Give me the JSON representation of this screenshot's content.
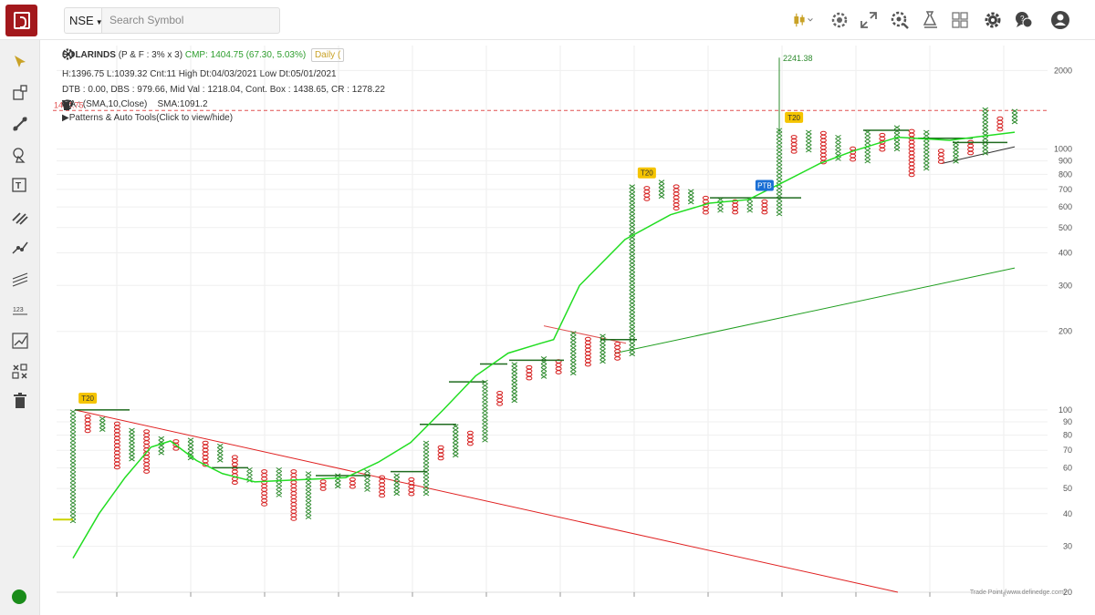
{
  "header": {
    "exchange": "NSE",
    "search_placeholder": "Search Symbol"
  },
  "toolbar_icons": [
    "candlestick-chart-icon",
    "settings-icon",
    "resize-icon",
    "screener-icon",
    "scanner-icon",
    "grid-layout-icon",
    "gear-icon",
    "chat-icon",
    "user-icon"
  ],
  "left_tools": [
    "pointer-icon",
    "rectangle-icon",
    "trendline-icon",
    "shapes-icon",
    "text-icon",
    "fib-icon",
    "ray-icon",
    "channel-icon",
    "number-icon",
    "polyline-icon",
    "grid-delete-icon",
    "trash-icon"
  ],
  "info": {
    "symbol": "SOLARINDS",
    "params": "(P & F : 3% x 3)",
    "cmp": "CMP: 1404.75 (67.30, 5.03%)",
    "timeframe": "Daily (",
    "line2": "H:1396.75 L:1039.32 Cnt:11 High Dt:04/03/2021 Low Dt:05/01/2021",
    "line3": "DTB : 0.00, DBS : 979.66, Mid Val : 1218.04, Cont. Box : 1438.65, CR : 1278.22",
    "ma_label": "MA : (SMA,10,Close)",
    "sma_value": "SMA:1091.2",
    "patterns": "Patterns & Auto Tools(Click to view/hide)"
  },
  "price_line_label": "1404.75",
  "peak_label": "2241.38",
  "badges": [
    "T20",
    "T20",
    "T20",
    "PTB"
  ],
  "y_ticks": [
    "2000",
    "1000",
    "900",
    "800",
    "700",
    "600",
    "500",
    "400",
    "300",
    "200",
    "100",
    "90",
    "80",
    "70",
    "60",
    "50",
    "40",
    "30",
    "20"
  ],
  "footer": "Trade Point (www.definedge.com)",
  "colors": {
    "x_col": "#2e8b2e",
    "o_col": "#d62020",
    "ma": "#22dd22",
    "badge": "#f5c400",
    "ptb": "#1a6fd4",
    "trend_red": "#e02020",
    "trend_green": "#1f9e1f"
  },
  "chart_data": {
    "type": "point-and-figure",
    "scale": "log",
    "ylim": [
      20,
      2300
    ],
    "columns": [
      {
        "t": "X",
        "lo": 38,
        "hi": 100
      },
      {
        "t": "O",
        "lo": 84,
        "hi": 96
      },
      {
        "t": "X",
        "lo": 85,
        "hi": 94
      },
      {
        "t": "O",
        "lo": 61,
        "hi": 90
      },
      {
        "t": "X",
        "lo": 64,
        "hi": 85
      },
      {
        "t": "O",
        "lo": 58,
        "hi": 84
      },
      {
        "t": "X",
        "lo": 68,
        "hi": 79
      },
      {
        "t": "O",
        "lo": 72,
        "hi": 77
      },
      {
        "t": "X",
        "lo": 66,
        "hi": 78
      },
      {
        "t": "O",
        "lo": 62,
        "hi": 76
      },
      {
        "t": "X",
        "lo": 64,
        "hi": 74
      },
      {
        "t": "O",
        "lo": 52,
        "hi": 67
      },
      {
        "t": "X",
        "lo": 54,
        "hi": 60
      },
      {
        "t": "O",
        "lo": 44,
        "hi": 59
      },
      {
        "t": "X",
        "lo": 47,
        "hi": 60
      },
      {
        "t": "O",
        "lo": 38,
        "hi": 59
      },
      {
        "t": "X",
        "lo": 39,
        "hi": 58
      },
      {
        "t": "O",
        "lo": 50,
        "hi": 54
      },
      {
        "t": "X",
        "lo": 51,
        "hi": 57
      },
      {
        "t": "O",
        "lo": 51,
        "hi": 55
      },
      {
        "t": "X",
        "lo": 50,
        "hi": 59
      },
      {
        "t": "O",
        "lo": 47,
        "hi": 56
      },
      {
        "t": "X",
        "lo": 48,
        "hi": 57
      },
      {
        "t": "O",
        "lo": 48,
        "hi": 55
      },
      {
        "t": "X",
        "lo": 48,
        "hi": 76
      },
      {
        "t": "O",
        "lo": 66,
        "hi": 73
      },
      {
        "t": "X",
        "lo": 68,
        "hi": 88
      },
      {
        "t": "O",
        "lo": 74,
        "hi": 83
      },
      {
        "t": "X",
        "lo": 76,
        "hi": 130
      },
      {
        "t": "O",
        "lo": 106,
        "hi": 118
      },
      {
        "t": "X",
        "lo": 110,
        "hi": 152
      },
      {
        "t": "O",
        "lo": 134,
        "hi": 148
      },
      {
        "t": "X",
        "lo": 134,
        "hi": 160
      },
      {
        "t": "O",
        "lo": 140,
        "hi": 156
      },
      {
        "t": "X",
        "lo": 138,
        "hi": 200
      },
      {
        "t": "O",
        "lo": 148,
        "hi": 190
      },
      {
        "t": "X",
        "lo": 152,
        "hi": 195
      },
      {
        "t": "O",
        "lo": 160,
        "hi": 182
      },
      {
        "t": "X",
        "lo": 164,
        "hi": 730
      },
      {
        "t": "O",
        "lo": 640,
        "hi": 720
      },
      {
        "t": "X",
        "lo": 660,
        "hi": 760
      },
      {
        "t": "O",
        "lo": 600,
        "hi": 730
      },
      {
        "t": "X",
        "lo": 620,
        "hi": 700
      },
      {
        "t": "O",
        "lo": 580,
        "hi": 660
      },
      {
        "t": "X",
        "lo": 590,
        "hi": 650
      },
      {
        "t": "O",
        "lo": 580,
        "hi": 640
      },
      {
        "t": "X",
        "lo": 590,
        "hi": 650
      },
      {
        "t": "O",
        "lo": 575,
        "hi": 640
      },
      {
        "t": "X",
        "lo": 570,
        "hi": 1200
      },
      {
        "t": "O",
        "lo": 980,
        "hi": 1130
      },
      {
        "t": "X",
        "lo": 1000,
        "hi": 1180
      },
      {
        "t": "O",
        "lo": 900,
        "hi": 1170
      },
      {
        "t": "X",
        "lo": 920,
        "hi": 1130
      },
      {
        "t": "O",
        "lo": 900,
        "hi": 1020
      },
      {
        "t": "X",
        "lo": 910,
        "hi": 1180
      },
      {
        "t": "O",
        "lo": 1000,
        "hi": 1150
      },
      {
        "t": "X",
        "lo": 1010,
        "hi": 1230
      },
      {
        "t": "O",
        "lo": 800,
        "hi": 1190
      },
      {
        "t": "X",
        "lo": 830,
        "hi": 1180
      },
      {
        "t": "O",
        "lo": 900,
        "hi": 1000
      },
      {
        "t": "X",
        "lo": 910,
        "hi": 1070
      },
      {
        "t": "O",
        "lo": 960,
        "hi": 1080
      },
      {
        "t": "X",
        "lo": 970,
        "hi": 1440
      },
      {
        "t": "O",
        "lo": 1200,
        "hi": 1330
      },
      {
        "t": "X",
        "lo": 1280,
        "hi": 1420
      }
    ],
    "ma_series": [
      [
        0,
        27
      ],
      [
        4,
        40
      ],
      [
        8,
        55
      ],
      [
        12,
        72
      ],
      [
        15,
        76
      ],
      [
        19,
        64
      ],
      [
        23,
        57
      ],
      [
        28,
        53
      ],
      [
        35,
        54
      ],
      [
        42,
        55
      ],
      [
        47,
        63
      ],
      [
        52,
        75
      ],
      [
        57,
        100
      ],
      [
        62,
        135
      ],
      [
        67,
        165
      ],
      [
        72,
        180
      ],
      [
        74,
        186
      ],
      [
        78,
        300
      ],
      [
        85,
        450
      ],
      [
        92,
        560
      ],
      [
        98,
        620
      ],
      [
        104,
        640
      ],
      [
        110,
        760
      ],
      [
        115,
        880
      ],
      [
        120,
        980
      ],
      [
        127,
        1110
      ],
      [
        135,
        1080
      ],
      [
        140,
        1120
      ],
      [
        145,
        1160
      ]
    ],
    "horizontal_current_price": 1404.75
  }
}
